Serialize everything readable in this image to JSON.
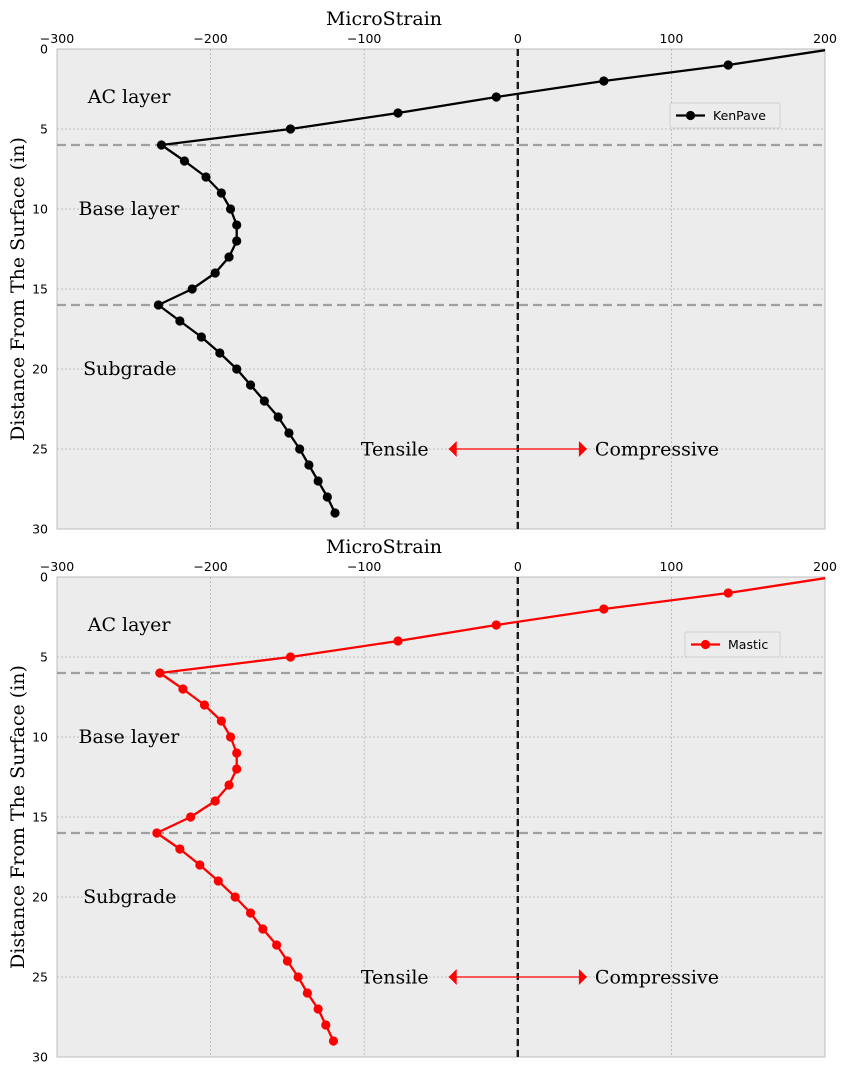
{
  "chart_data": [
    {
      "type": "line",
      "title": "MicroStrain",
      "xlabel": "MicroStrain",
      "ylabel": "Distance From The Surface (in)",
      "xlim": [
        -300,
        200
      ],
      "ylim": [
        30,
        0
      ],
      "y_inverted": true,
      "x_axis_position": "top",
      "x_ticks": [
        "−300",
        "−200",
        "−100",
        "0",
        "100",
        "200"
      ],
      "y_ticks": [
        "0",
        "5",
        "10",
        "15",
        "20",
        "25",
        "30"
      ],
      "grid": true,
      "legend_position": "upper-right",
      "series": [
        {
          "name": "KenPave",
          "color": "#000000",
          "marker": "circle",
          "points": [
            {
              "x": 205,
              "y": 0
            },
            {
              "x": 137,
              "y": 1
            },
            {
              "x": 56,
              "y": 2
            },
            {
              "x": -14,
              "y": 3
            },
            {
              "x": -78,
              "y": 4
            },
            {
              "x": -148,
              "y": 5
            },
            {
              "x": -232,
              "y": 6
            },
            {
              "x": -217,
              "y": 7
            },
            {
              "x": -203,
              "y": 8
            },
            {
              "x": -193,
              "y": 9
            },
            {
              "x": -187,
              "y": 10
            },
            {
              "x": -183,
              "y": 11
            },
            {
              "x": -183,
              "y": 12
            },
            {
              "x": -188,
              "y": 13
            },
            {
              "x": -197,
              "y": 14
            },
            {
              "x": -212,
              "y": 15
            },
            {
              "x": -234,
              "y": 16
            },
            {
              "x": -220,
              "y": 17
            },
            {
              "x": -206,
              "y": 18
            },
            {
              "x": -194,
              "y": 19
            },
            {
              "x": -183,
              "y": 20
            },
            {
              "x": -174,
              "y": 21
            },
            {
              "x": -165,
              "y": 22
            },
            {
              "x": -156,
              "y": 23
            },
            {
              "x": -149,
              "y": 24
            },
            {
              "x": -142,
              "y": 25
            },
            {
              "x": -136,
              "y": 26
            },
            {
              "x": -130,
              "y": 27
            },
            {
              "x": -124,
              "y": 28
            },
            {
              "x": -119,
              "y": 29
            }
          ]
        }
      ],
      "layer_boundaries": [
        6,
        16
      ],
      "layer_labels": [
        {
          "text": "AC layer",
          "x": -280,
          "y": 3
        },
        {
          "text": "Base layer",
          "x": -286,
          "y": 10
        },
        {
          "text": "Subgrade",
          "x": -283,
          "y": 20
        }
      ],
      "zero_line": 0,
      "annotations": {
        "tensile": "Tensile",
        "compressive": "Compressive",
        "arrow_y": 25,
        "arrow_left": -45,
        "arrow_right": 45,
        "color": "#ff0000"
      }
    },
    {
      "type": "line",
      "title": "MicroStrain",
      "xlabel": "MicroStrain",
      "ylabel": "Distance From The Surface (in)",
      "xlim": [
        -300,
        200
      ],
      "ylim": [
        30,
        0
      ],
      "y_inverted": true,
      "x_axis_position": "top",
      "x_ticks": [
        "−300",
        "−200",
        "−100",
        "0",
        "100",
        "200"
      ],
      "y_ticks": [
        "0",
        "5",
        "10",
        "15",
        "20",
        "25",
        "30"
      ],
      "grid": true,
      "legend_position": "upper-right",
      "series": [
        {
          "name": "Mastic",
          "color": "#ff0000",
          "marker": "circle",
          "points": [
            {
              "x": 205,
              "y": 0
            },
            {
              "x": 137,
              "y": 1
            },
            {
              "x": 56,
              "y": 2
            },
            {
              "x": -14,
              "y": 3
            },
            {
              "x": -78,
              "y": 4
            },
            {
              "x": -148,
              "y": 5
            },
            {
              "x": -233,
              "y": 6
            },
            {
              "x": -218,
              "y": 7
            },
            {
              "x": -204,
              "y": 8
            },
            {
              "x": -193,
              "y": 9
            },
            {
              "x": -187,
              "y": 10
            },
            {
              "x": -183,
              "y": 11
            },
            {
              "x": -183,
              "y": 12
            },
            {
              "x": -188,
              "y": 13
            },
            {
              "x": -197,
              "y": 14
            },
            {
              "x": -213,
              "y": 15
            },
            {
              "x": -235,
              "y": 16
            },
            {
              "x": -220,
              "y": 17
            },
            {
              "x": -207,
              "y": 18
            },
            {
              "x": -195,
              "y": 19
            },
            {
              "x": -184,
              "y": 20
            },
            {
              "x": -174,
              "y": 21
            },
            {
              "x": -166,
              "y": 22
            },
            {
              "x": -157,
              "y": 23
            },
            {
              "x": -150,
              "y": 24
            },
            {
              "x": -143,
              "y": 25
            },
            {
              "x": -137,
              "y": 26
            },
            {
              "x": -130,
              "y": 27
            },
            {
              "x": -125,
              "y": 28
            },
            {
              "x": -120,
              "y": 29
            }
          ]
        }
      ],
      "layer_boundaries": [
        6,
        16
      ],
      "layer_labels": [
        {
          "text": "AC layer",
          "x": -280,
          "y": 3
        },
        {
          "text": "Base layer",
          "x": -286,
          "y": 10
        },
        {
          "text": "Subgrade",
          "x": -283,
          "y": 20
        }
      ],
      "zero_line": 0,
      "annotations": {
        "tensile": "Tensile",
        "compressive": "Compressive",
        "arrow_y": 25,
        "arrow_left": -45,
        "arrow_right": 45,
        "color": "#ff0000"
      }
    }
  ]
}
